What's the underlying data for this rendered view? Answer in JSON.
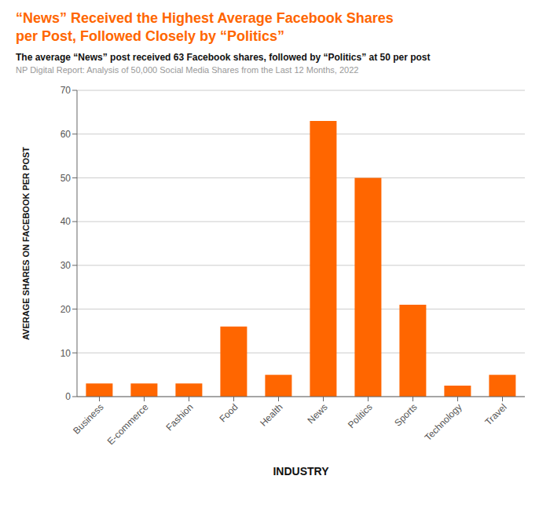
{
  "chart_data": {
    "type": "bar",
    "title": "“News” Received the Highest Average Facebook Shares\nper Post, Followed Closely by “Politics”",
    "subtitle": "The average “News” post received 63 Facebook shares, followed by “Politics” at 50 per post",
    "annotations": [
      "NP Digital Report: Analysis of 50,000 Social Media Shares from the Last 12 Months, 2022"
    ],
    "categories": [
      "Business",
      "E-commerce",
      "Fashion",
      "Food",
      "Health",
      "News",
      "Politics",
      "Sports",
      "Technology",
      "Travel"
    ],
    "values": [
      3,
      3,
      3,
      16,
      5,
      63,
      50,
      21,
      2.5,
      5
    ],
    "color": "#FF6600",
    "xlabel": "INDUSTRY",
    "ylabel": "AVERAGE SHARES ON FACEBOOK PER POST",
    "ylim": [
      0,
      70
    ],
    "yticks": [
      0,
      10,
      20,
      30,
      40,
      50,
      60,
      70
    ],
    "grid": true
  }
}
